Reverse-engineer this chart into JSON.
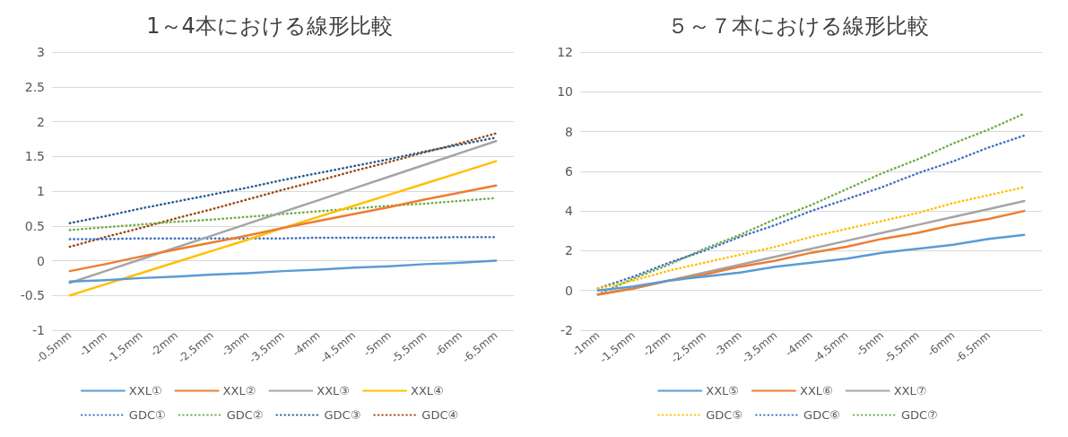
{
  "chart_data": [
    {
      "type": "line",
      "title": "1～4本における線形比較",
      "categories": [
        "-0.5mm",
        "-1mm",
        "-1.5mm",
        "-2mm",
        "-2.5mm",
        "-3mm",
        "-3.5mm",
        "-4mm",
        "-4.5mm",
        "-5mm",
        "-5.5mm",
        "-6mm",
        "-6.5mm"
      ],
      "ylim": [
        -1,
        3
      ],
      "yticks": [
        -1,
        -0.5,
        0,
        0.5,
        1,
        1.5,
        2,
        2.5,
        3
      ],
      "grid": "y",
      "legend": "bottom",
      "marker": "none",
      "series": [
        {
          "name": "XXL①",
          "color": "#5b9bd5",
          "line_style": "solid",
          "values": [
            -0.3,
            -0.28,
            -0.25,
            -0.23,
            -0.2,
            -0.18,
            -0.15,
            -0.13,
            -0.1,
            -0.08,
            -0.05,
            -0.03,
            0
          ]
        },
        {
          "name": "XXL②",
          "color": "#ed7d31",
          "line_style": "solid",
          "values": [
            -0.15,
            -0.05,
            0.06,
            0.16,
            0.26,
            0.36,
            0.47,
            0.57,
            0.67,
            0.77,
            0.88,
            0.98,
            1.08
          ]
        },
        {
          "name": "XXL③",
          "color": "#a5a5a5",
          "line_style": "solid",
          "values": [
            -0.32,
            -0.15,
            0.02,
            0.19,
            0.36,
            0.53,
            0.7,
            0.87,
            1.04,
            1.21,
            1.38,
            1.55,
            1.72
          ]
        },
        {
          "name": "XXL④",
          "color": "#ffc000",
          "line_style": "solid",
          "values": [
            -0.5,
            -0.34,
            -0.18,
            -0.02,
            0.14,
            0.3,
            0.47,
            0.63,
            0.79,
            0.95,
            1.11,
            1.27,
            1.43
          ]
        },
        {
          "name": "GDC①",
          "color": "#4472c4",
          "line_style": "dotted",
          "values": [
            0.31,
            0.31,
            0.32,
            0.32,
            0.32,
            0.32,
            0.32,
            0.33,
            0.33,
            0.33,
            0.33,
            0.34,
            0.34
          ]
        },
        {
          "name": "GDC②",
          "color": "#70ad47",
          "line_style": "dotted",
          "values": [
            0.44,
            0.48,
            0.52,
            0.56,
            0.59,
            0.63,
            0.67,
            0.71,
            0.75,
            0.79,
            0.82,
            0.86,
            0.9
          ]
        },
        {
          "name": "GDC③",
          "color": "#255e91",
          "line_style": "dotted",
          "values": [
            0.54,
            0.64,
            0.75,
            0.85,
            0.95,
            1.05,
            1.16,
            1.26,
            1.36,
            1.46,
            1.57,
            1.67,
            1.77
          ]
        },
        {
          "name": "GDC④",
          "color": "#9e480e",
          "line_style": "dotted",
          "values": [
            0.2,
            0.34,
            0.47,
            0.61,
            0.74,
            0.88,
            1.02,
            1.15,
            1.29,
            1.42,
            1.56,
            1.69,
            1.83
          ]
        }
      ]
    },
    {
      "type": "line",
      "title": "５～７本における線形比較",
      "categories": [
        "-1mm",
        "-1.5mm",
        "-2mm",
        "-2.5mm",
        "-3mm",
        "-3.5mm",
        "-4mm",
        "-4.5mm",
        "-5mm",
        "-5.5mm",
        "-6mm",
        "-6.5mm",
        null
      ],
      "ylim": [
        -2,
        12
      ],
      "yticks": [
        -2,
        0,
        2,
        4,
        6,
        8,
        10,
        12
      ],
      "grid": "y",
      "legend": "bottom",
      "marker": "none",
      "series": [
        {
          "name": "XXL⑤",
          "color": "#5b9bd5",
          "line_style": "solid",
          "values": [
            0,
            0.2,
            0.5,
            0.7,
            0.9,
            1.2,
            1.4,
            1.6,
            1.9,
            2.1,
            2.3,
            2.6,
            2.8
          ]
        },
        {
          "name": "XXL⑥",
          "color": "#ed7d31",
          "line_style": "solid",
          "values": [
            -0.2,
            0.1,
            0.5,
            0.8,
            1.2,
            1.5,
            1.9,
            2.2,
            2.6,
            2.9,
            3.3,
            3.6,
            4.0
          ]
        },
        {
          "name": "XXL⑦",
          "color": "#a5a5a5",
          "line_style": "solid",
          "values": [
            -0.2,
            0.1,
            0.5,
            0.9,
            1.3,
            1.7,
            2.1,
            2.5,
            2.9,
            3.3,
            3.7,
            4.1,
            4.5
          ]
        },
        {
          "name": "GDC⑤",
          "color": "#ffc000",
          "line_style": "dotted",
          "values": [
            0.1,
            0.5,
            1.0,
            1.4,
            1.8,
            2.2,
            2.7,
            3.1,
            3.5,
            3.9,
            4.4,
            4.8,
            5.2
          ]
        },
        {
          "name": "GDC⑥",
          "color": "#4472c4",
          "line_style": "dotted",
          "values": [
            0.1,
            0.7,
            1.4,
            2.0,
            2.7,
            3.3,
            4.0,
            4.6,
            5.2,
            5.9,
            6.5,
            7.2,
            7.8
          ]
        },
        {
          "name": "GDC⑦",
          "color": "#70ad47",
          "line_style": "dotted",
          "values": [
            -0.2,
            0.6,
            1.3,
            2.1,
            2.8,
            3.6,
            4.3,
            5.1,
            5.9,
            6.6,
            7.4,
            8.1,
            8.9
          ]
        }
      ]
    }
  ]
}
